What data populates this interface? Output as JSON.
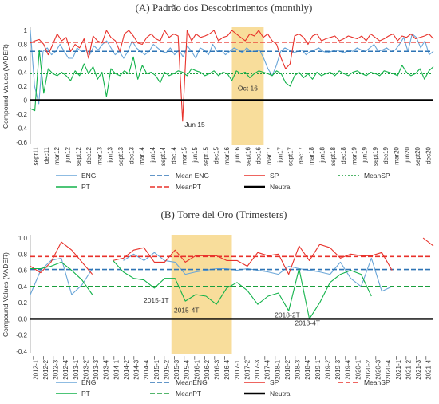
{
  "chart_data": [
    {
      "panel": "(A)",
      "title": "Padrão dos Descobrimentos (monthly)",
      "type": "line",
      "ylabel": "Compound Values (VADER)",
      "ylim": [
        -0.6,
        1.0
      ],
      "yticks": [
        -0.6,
        -0.4,
        -0.2,
        0,
        0.2,
        0.4,
        0.6,
        0.8,
        1
      ],
      "xticks": [
        "sept11",
        "dec11",
        "mar12",
        "jun12",
        "sept12",
        "dec12",
        "mar13",
        "jun13",
        "sept13",
        "dec13",
        "mar14",
        "jun14",
        "sept14",
        "dec14",
        "mar15",
        "jun15",
        "sept15",
        "dec15",
        "mar16",
        "jun16",
        "sept16",
        "dec16",
        "mar17",
        "jun17",
        "sept17",
        "dec17",
        "mar18",
        "jun18",
        "sept18",
        "dec18",
        "mar19",
        "jun19",
        "sept19",
        "dec19",
        "mar20",
        "jun20",
        "sept20",
        "dec20"
      ],
      "highlight": {
        "from": "jun16",
        "to": "dec16",
        "color": "#f6d27a"
      },
      "annotations": [
        {
          "text": "Jun 15",
          "x": "jun15",
          "y": -0.38
        },
        {
          "text": "Oct 16",
          "x": "sept16",
          "y": 0.14
        }
      ],
      "series": [
        {
          "name": "ENG",
          "color": "#6aa6d8",
          "style": "solid",
          "values": [
            1.0,
            0.2,
            -0.05,
            0.7,
            0.75,
            0.65,
            0.7,
            0.8,
            0.7,
            0.6,
            0.6,
            0.75,
            0.7,
            0.72,
            0.65,
            0.78,
            0.72,
            0.8,
            0.85,
            0.75,
            0.65,
            0.7,
            0.6,
            0.7,
            0.85,
            0.75,
            0.7,
            0.65,
            0.7,
            0.8,
            0.75,
            0.7,
            0.68,
            0.75,
            0.65,
            0.72,
            0.62,
            0.78,
            0.7,
            0.6,
            0.75,
            0.72,
            0.65,
            0.8,
            0.7,
            0.72,
            0.65,
            0.7,
            0.75,
            0.72,
            0.68,
            0.75,
            0.7,
            0.7,
            0.72,
            0.6,
            0.45,
            0.35,
            0.5,
            0.7,
            0.75,
            0.72,
            0.68,
            0.7,
            0.72,
            0.65,
            0.7,
            0.72,
            0.75,
            0.7,
            0.68,
            0.7,
            0.72,
            0.7,
            0.68,
            0.72,
            0.7,
            0.75,
            0.72,
            0.7,
            0.75,
            0.8,
            0.7,
            0.72,
            0.75,
            0.7,
            0.72,
            0.8,
            0.9,
            0.7,
            0.95,
            0.9,
            0.75,
            0.85,
            0.65,
            0.7
          ]
        },
        {
          "name": "Mean ENG",
          "color": "#2e74b5",
          "style": "dashed",
          "constant": 0.7
        },
        {
          "name": "SP",
          "color": "#e8322b",
          "style": "solid",
          "values": [
            0.82,
            0.85,
            0.87,
            0.8,
            0.65,
            0.8,
            0.95,
            0.85,
            0.9,
            0.7,
            0.8,
            0.75,
            0.88,
            0.6,
            0.92,
            0.85,
            0.82,
            1.0,
            0.9,
            0.85,
            0.7,
            0.95,
            1.0,
            0.92,
            0.82,
            0.8,
            0.9,
            0.95,
            0.88,
            0.85,
            1.0,
            0.9,
            0.95,
            0.92,
            -0.3,
            1.0,
            0.85,
            0.95,
            0.9,
            0.92,
            0.95,
            1.0,
            0.85,
            0.9,
            0.92,
            1.0,
            0.95,
            0.9,
            0.85,
            0.95,
            0.92,
            1.0,
            0.9,
            0.95,
            0.85,
            0.8,
            0.6,
            0.45,
            0.52,
            0.92,
            0.95,
            0.9,
            0.8,
            0.92,
            0.95,
            0.85,
            0.88,
            0.9,
            0.92,
            0.85,
            0.88,
            0.92,
            0.9,
            0.88,
            0.92,
            0.85,
            0.95,
            0.9,
            0.85,
            0.88,
            0.92,
            0.95,
            0.85,
            0.92,
            0.9,
            0.95,
            0.88,
            0.9,
            0.92,
            0.95,
            0.88
          ]
        },
        {
          "name": "MeanSP",
          "color": "#1a9e3c",
          "style": "dotted",
          "constant": 0.38
        },
        {
          "name": "PT",
          "color": "#12b24a",
          "style": "solid",
          "values": [
            -0.12,
            -0.15,
            0.72,
            0.1,
            0.45,
            0.38,
            0.35,
            0.4,
            0.35,
            0.28,
            0.42,
            0.35,
            0.52,
            0.38,
            0.48,
            0.3,
            0.4,
            0.05,
            0.45,
            0.38,
            0.35,
            0.42,
            0.38,
            0.62,
            0.3,
            0.5,
            0.38,
            0.4,
            0.35,
            0.25,
            0.4,
            0.35,
            0.38,
            0.42,
            0.4,
            0.35,
            0.45,
            0.42,
            0.4,
            0.35,
            0.38,
            0.42,
            0.35,
            0.4,
            0.38,
            0.28,
            0.42,
            0.38,
            0.4,
            0.32,
            0.38,
            0.42,
            0.4,
            0.38,
            0.35,
            0.42,
            0.38,
            0.25,
            0.2,
            0.35,
            0.4,
            0.32,
            0.38,
            0.3,
            0.4,
            0.35,
            0.38,
            0.4,
            0.35,
            0.42,
            0.38,
            0.35,
            0.4,
            0.42,
            0.38,
            0.35,
            0.4,
            0.38,
            0.35,
            0.42,
            0.4,
            0.38,
            0.35,
            0.5,
            0.4,
            0.35,
            0.38,
            0.45,
            0.3,
            0.42,
            0.48
          ]
        },
        {
          "name": "MeanPT",
          "color": "#e8322b",
          "style": "dashed",
          "constant": 0.83
        },
        {
          "name": "Neutral",
          "color": "#000000",
          "style": "solid-thick",
          "constant": 0
        }
      ]
    },
    {
      "panel": "(B)",
      "title": "Torre del Oro (Trimesters)",
      "type": "line",
      "ylabel": "Compound Values (VADER)",
      "ylim": [
        -0.4,
        1.0
      ],
      "yticks": [
        -0.4,
        -0.2,
        0,
        0.2,
        0.4,
        0.6,
        0.8,
        1.0
      ],
      "xticks": [
        "2012-1T",
        "2012-2T",
        "2012-3T",
        "2012-4T",
        "2013-1T",
        "2013-2T",
        "2013-3T",
        "2013-4T",
        "2014-1T",
        "2014-2T",
        "2014-3T",
        "2014-4T",
        "2015-1T",
        "2015-2T",
        "2015-3T",
        "2015-4T",
        "2016-1T",
        "2016-2T",
        "2016-3T",
        "2016-4T",
        "2017-1T",
        "2017-2T",
        "2017-3T",
        "2017-4T",
        "2018-1T",
        "2018-2T",
        "2018-3T",
        "2018-4T",
        "2019-1T",
        "2019-2T",
        "2019-3T",
        "2019-4T",
        "2020-1T",
        "2020-2T",
        "2020-3T",
        "2020-4T",
        "2021-1T",
        "2021-2T",
        "2021-3T",
        "2021-4T"
      ],
      "highlight": {
        "from": "2015-3T",
        "to": "2016-4T",
        "color": "#f6d27a"
      },
      "annotations": [
        {
          "text": "2015-1T",
          "x": "2015-1T",
          "y": 0.2
        },
        {
          "text": "2015-4T",
          "x": "2015-4T",
          "y": 0.08
        },
        {
          "text": "2018-2T",
          "x": "2018-2T",
          "y": 0.02
        },
        {
          "text": "2018-4T",
          "x": "2018-4T",
          "y": -0.08
        }
      ],
      "series": [
        {
          "name": "ENG",
          "color": "#6aa6d8",
          "style": "solid",
          "values": [
            0.3,
            0.6,
            0.72,
            0.75,
            0.3,
            0.42,
            0.62,
            null,
            null,
            0.72,
            0.8,
            0.72,
            0.82,
            0.72,
            0.7,
            0.55,
            0.58,
            0.6,
            0.62,
            0.62,
            0.6,
            0.62,
            0.6,
            0.58,
            0.55,
            0.65,
            0.62,
            0.6,
            0.58,
            0.55,
            0.7,
            0.5,
            0.4,
            0.75,
            0.34,
            0.4,
            null,
            null,
            null,
            null
          ]
        },
        {
          "name": "MeanENG",
          "color": "#2e74b5",
          "style": "dashed",
          "constant": 0.61
        },
        {
          "name": "SP",
          "color": "#e8322b",
          "style": "solid",
          "values": [
            0.65,
            0.57,
            0.7,
            0.95,
            0.85,
            0.7,
            0.55,
            null,
            0.72,
            0.75,
            0.85,
            0.88,
            0.7,
            0.7,
            0.85,
            0.7,
            0.78,
            0.78,
            0.78,
            0.72,
            0.72,
            0.65,
            0.82,
            0.78,
            0.8,
            0.55,
            0.9,
            0.72,
            0.92,
            0.88,
            0.75,
            0.8,
            0.78,
            0.78,
            0.82,
            0.6,
            null,
            null,
            1.0,
            0.9
          ]
        },
        {
          "name": "MeanSP",
          "color": "#e8322b",
          "style": "dashed",
          "constant": 0.77
        },
        {
          "name": "PT",
          "color": "#12b24a",
          "style": "solid",
          "values": [
            0.62,
            0.62,
            0.65,
            0.7,
            0.6,
            0.48,
            0.3,
            null,
            0.72,
            0.58,
            0.5,
            0.48,
            0.38,
            0.5,
            0.5,
            0.22,
            0.3,
            0.28,
            0.18,
            0.38,
            0.45,
            0.35,
            0.18,
            0.28,
            0.32,
            0.1,
            0.62,
            0.0,
            0.2,
            0.45,
            0.55,
            0.6,
            0.55,
            0.28,
            null,
            null,
            null,
            null,
            null,
            null
          ]
        },
        {
          "name": "MeanPT",
          "color": "#1a9e3c",
          "style": "dashed",
          "constant": 0.4
        },
        {
          "name": "Neutral",
          "color": "#000000",
          "style": "solid-thick",
          "constant": 0
        }
      ]
    }
  ]
}
